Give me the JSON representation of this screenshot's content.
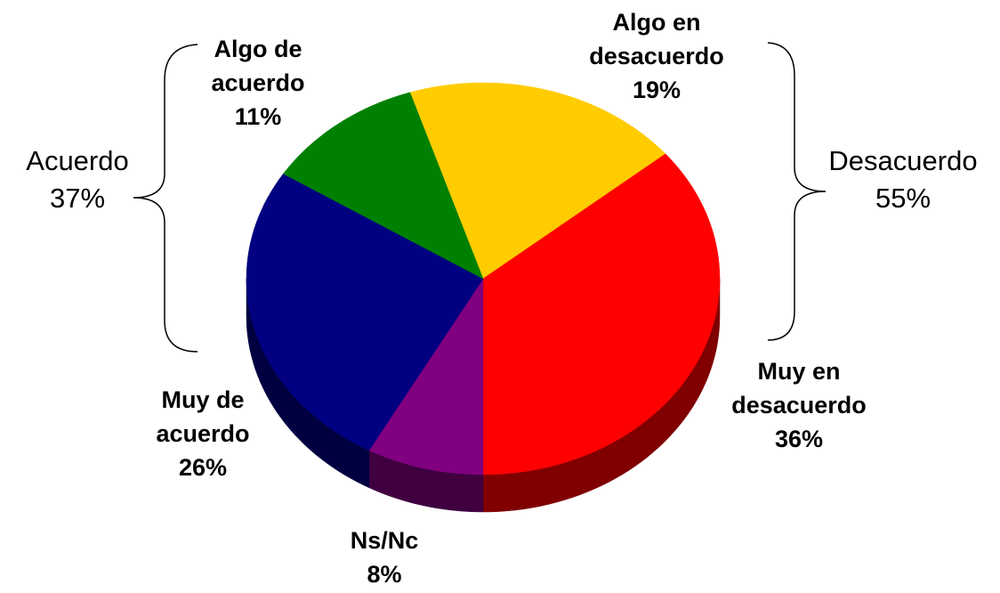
{
  "chart_data": {
    "type": "pie3d",
    "categories": [
      "Algo en desacuerdo",
      "Muy en desacuerdo",
      "Ns/Nc",
      "Muy de acuerdo",
      "Algo de acuerdo"
    ],
    "values": [
      19,
      36,
      8,
      26,
      11
    ],
    "value_labels": [
      "19%",
      "36%",
      "8%",
      "26%",
      "11%"
    ],
    "colors": [
      "#ffcc00",
      "#ff0000",
      "#800080",
      "#000080",
      "#008000"
    ],
    "side_colors": [
      "#806600",
      "#800000",
      "#400040",
      "#000040",
      "#004000"
    ],
    "annotations": [
      {
        "label": "Acuerdo",
        "value": 37,
        "value_label": "37%"
      },
      {
        "label": "Desacuerdo",
        "value": 55,
        "value_label": "55%"
      }
    ]
  }
}
